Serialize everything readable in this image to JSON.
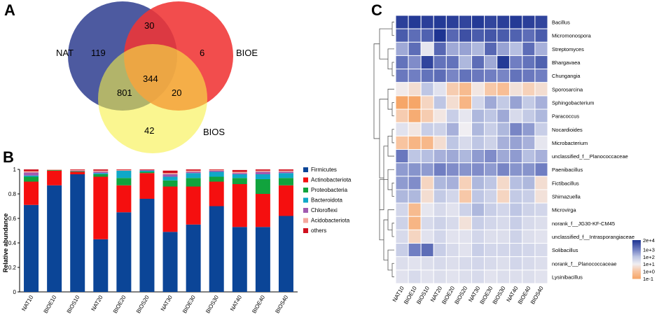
{
  "panels": {
    "a": "A",
    "b": "B",
    "c": "C"
  },
  "chart_data": [
    {
      "type": "venn",
      "panel": "A",
      "sets": [
        {
          "name": "NAT",
          "color": "#4d5aa0"
        },
        {
          "name": "BIOE",
          "color": "#f03434"
        },
        {
          "name": "BIOS",
          "color": "#f6f046"
        }
      ],
      "regions": {
        "NAT_only": "119",
        "BIOE_only": "6",
        "BIOS_only": "42",
        "NAT_BIOE": "30",
        "NAT_BIOS": "801",
        "BIOE_BIOS": "20",
        "all": "344"
      }
    },
    {
      "type": "bar",
      "stacked": true,
      "panel": "B",
      "ylabel": "Relative abundance",
      "ylim": [
        0,
        1
      ],
      "yticks": [
        {
          "v": 0,
          "label": "0"
        },
        {
          "v": 0.2,
          "label": "0.2"
        },
        {
          "v": 0.4,
          "label": "0.4"
        },
        {
          "v": 0.6,
          "label": "0.6"
        },
        {
          "v": 0.8,
          "label": "0.8"
        },
        {
          "v": 1,
          "label": "1"
        }
      ],
      "categories": [
        "NAT10",
        "BIOE10",
        "BIOS10",
        "NAT20",
        "BIOE20",
        "BIOS20",
        "NAT30",
        "BIOE30",
        "BIOS30",
        "NAT40",
        "BIOE40",
        "BIOS40"
      ],
      "series": [
        {
          "name": "Firmicutes",
          "color": "#0b4597",
          "values": [
            0.71,
            0.87,
            0.96,
            0.43,
            0.65,
            0.76,
            0.49,
            0.55,
            0.7,
            0.53,
            0.53,
            0.62
          ]
        },
        {
          "name": "Actinobacteriota",
          "color": "#f50f0f",
          "values": [
            0.19,
            0.12,
            0.02,
            0.51,
            0.22,
            0.21,
            0.37,
            0.31,
            0.2,
            0.35,
            0.27,
            0.25
          ]
        },
        {
          "name": "Proteobacteria",
          "color": "#11a33d",
          "values": [
            0.04,
            0.005,
            0.005,
            0.02,
            0.06,
            0.01,
            0.05,
            0.07,
            0.04,
            0.05,
            0.12,
            0.06
          ]
        },
        {
          "name": "Bacteroidota",
          "color": "#0fa8c8",
          "values": [
            0.01,
            0.0,
            0.0,
            0.01,
            0.06,
            0.01,
            0.03,
            0.04,
            0.04,
            0.03,
            0.04,
            0.04
          ]
        },
        {
          "name": "Chloroflexi",
          "color": "#a15ab0",
          "values": [
            0.025,
            0.0,
            0.005,
            0.01,
            0.0,
            0.005,
            0.02,
            0.01,
            0.01,
            0.01,
            0.02,
            0.01
          ]
        },
        {
          "name": "Acidobacteriota",
          "color": "#f4a79e",
          "values": [
            0.01,
            0.005,
            0.005,
            0.01,
            0.005,
            0.0,
            0.01,
            0.01,
            0.005,
            0.01,
            0.01,
            0.01
          ]
        },
        {
          "name": "others",
          "color": "#d0101e",
          "values": [
            0.015,
            0.0,
            0.005,
            0.01,
            0.005,
            0.005,
            0.02,
            0.01,
            0.005,
            0.015,
            0.01,
            0.01
          ]
        }
      ]
    },
    {
      "type": "heatmap",
      "panel": "C",
      "columns": [
        "NAT10",
        "BIOE10",
        "BIOS10",
        "NAT20",
        "BIOE20",
        "BIOS20",
        "NAT30",
        "BIOE30",
        "BIOS30",
        "NAT40",
        "BIOE40",
        "BIOS40"
      ],
      "rows": [
        "Bacillus",
        "Micromonospora",
        "Streptomyces",
        "Bhargavaea",
        "Chungangia",
        "Sporosarcina",
        "Sphingobacterium",
        "Paracoccus",
        "Nocardioides",
        "Microbacterium",
        "unclassified_f__Planococcaceae",
        "Paenibacillus",
        "Fictibacillus",
        "Shimazuella",
        "Microvirga",
        "norank_f__JG30-KF-CM45",
        "unclassified_f__Intrasporangiaceae",
        "Solibacillus",
        "norank_f__Planococcaceae",
        "Lysinibacillus"
      ],
      "values_log10": [
        [
          4.1,
          4.2,
          4.1,
          4.2,
          4.1,
          4.0,
          4.2,
          4.0,
          4.1,
          4.2,
          4.1,
          4.0
        ],
        [
          3.6,
          3.3,
          3.5,
          4.5,
          3.4,
          3.8,
          3.6,
          3.7,
          3.6,
          3.5,
          3.3,
          3.6
        ],
        [
          2.4,
          3.3,
          1.2,
          3.4,
          2.4,
          2.5,
          2.2,
          3.4,
          2.5,
          2.1,
          3.3,
          2.3
        ],
        [
          3.2,
          2.8,
          4.0,
          3.2,
          3.2,
          2.2,
          3.3,
          2.4,
          4.2,
          3.0,
          3.2,
          3.5
        ],
        [
          3.1,
          3.0,
          3.2,
          3.3,
          2.9,
          3.2,
          3.1,
          3.0,
          2.9,
          3.2,
          3.1,
          3.0
        ],
        [
          0.9,
          0.6,
          2.0,
          1.3,
          0.2,
          -0.3,
          0.8,
          0.1,
          -0.2,
          0.7,
          0.3,
          0.6
        ],
        [
          -1.0,
          -1.0,
          0.4,
          2.0,
          0.6,
          -0.5,
          1.6,
          2.4,
          1.9,
          2.5,
          1.9,
          2.3
        ],
        [
          0.2,
          -0.8,
          0.2,
          0.8,
          1.8,
          1.2,
          2.2,
          2.0,
          2.4,
          1.5,
          1.9,
          2.2
        ],
        [
          1.3,
          0.8,
          1.8,
          1.7,
          2.3,
          1.0,
          2.2,
          1.8,
          2.2,
          2.9,
          2.6,
          1.8
        ],
        [
          0.0,
          -0.5,
          -0.4,
          0.6,
          2.0,
          1.5,
          2.0,
          1.7,
          2.3,
          2.5,
          2.3,
          1.2
        ],
        [
          3.1,
          2.0,
          2.1,
          2.3,
          2.4,
          2.2,
          2.6,
          2.8,
          2.4,
          2.6,
          2.1,
          2.3
        ],
        [
          2.6,
          2.7,
          2.6,
          3.0,
          2.8,
          2.7,
          2.8,
          2.6,
          2.9,
          2.7,
          2.7,
          3.0
        ],
        [
          2.6,
          2.8,
          0.4,
          2.2,
          2.3,
          0.3,
          2.2,
          2.0,
          0.5,
          2.1,
          2.2,
          0.6
        ],
        [
          2.2,
          2.2,
          0.6,
          1.9,
          1.6,
          0.1,
          2.0,
          1.7,
          0.4,
          1.9,
          1.8,
          0.7
        ],
        [
          1.6,
          -0.3,
          1.2,
          1.5,
          1.3,
          1.7,
          2.2,
          1.8,
          1.6,
          2.0,
          1.7,
          1.6
        ],
        [
          1.7,
          -0.5,
          1.5,
          1.7,
          1.5,
          0.7,
          1.8,
          1.6,
          1.5,
          1.8,
          1.5,
          1.4
        ],
        [
          1.5,
          0.4,
          1.3,
          1.6,
          1.3,
          1.3,
          1.6,
          1.4,
          1.4,
          1.7,
          1.4,
          1.3
        ],
        [
          1.8,
          3.0,
          3.3,
          1.8,
          1.5,
          1.3,
          1.8,
          1.6,
          1.6,
          1.7,
          1.6,
          1.5
        ],
        [
          1.4,
          1.3,
          1.4,
          1.5,
          1.4,
          1.5,
          1.6,
          1.5,
          1.4,
          1.6,
          1.5,
          1.4
        ],
        [
          1.3,
          1.5,
          1.3,
          1.4,
          1.3,
          1.4,
          1.5,
          1.3,
          1.4,
          1.4,
          1.4,
          1.3
        ]
      ],
      "colorbar": {
        "labels": [
          "2e+4",
          "1e+3",
          "1e+2",
          "1e+1",
          "1e+0",
          "1e-1"
        ],
        "values_log10": [
          4.3,
          3,
          2,
          1,
          0,
          -1
        ]
      }
    }
  ]
}
